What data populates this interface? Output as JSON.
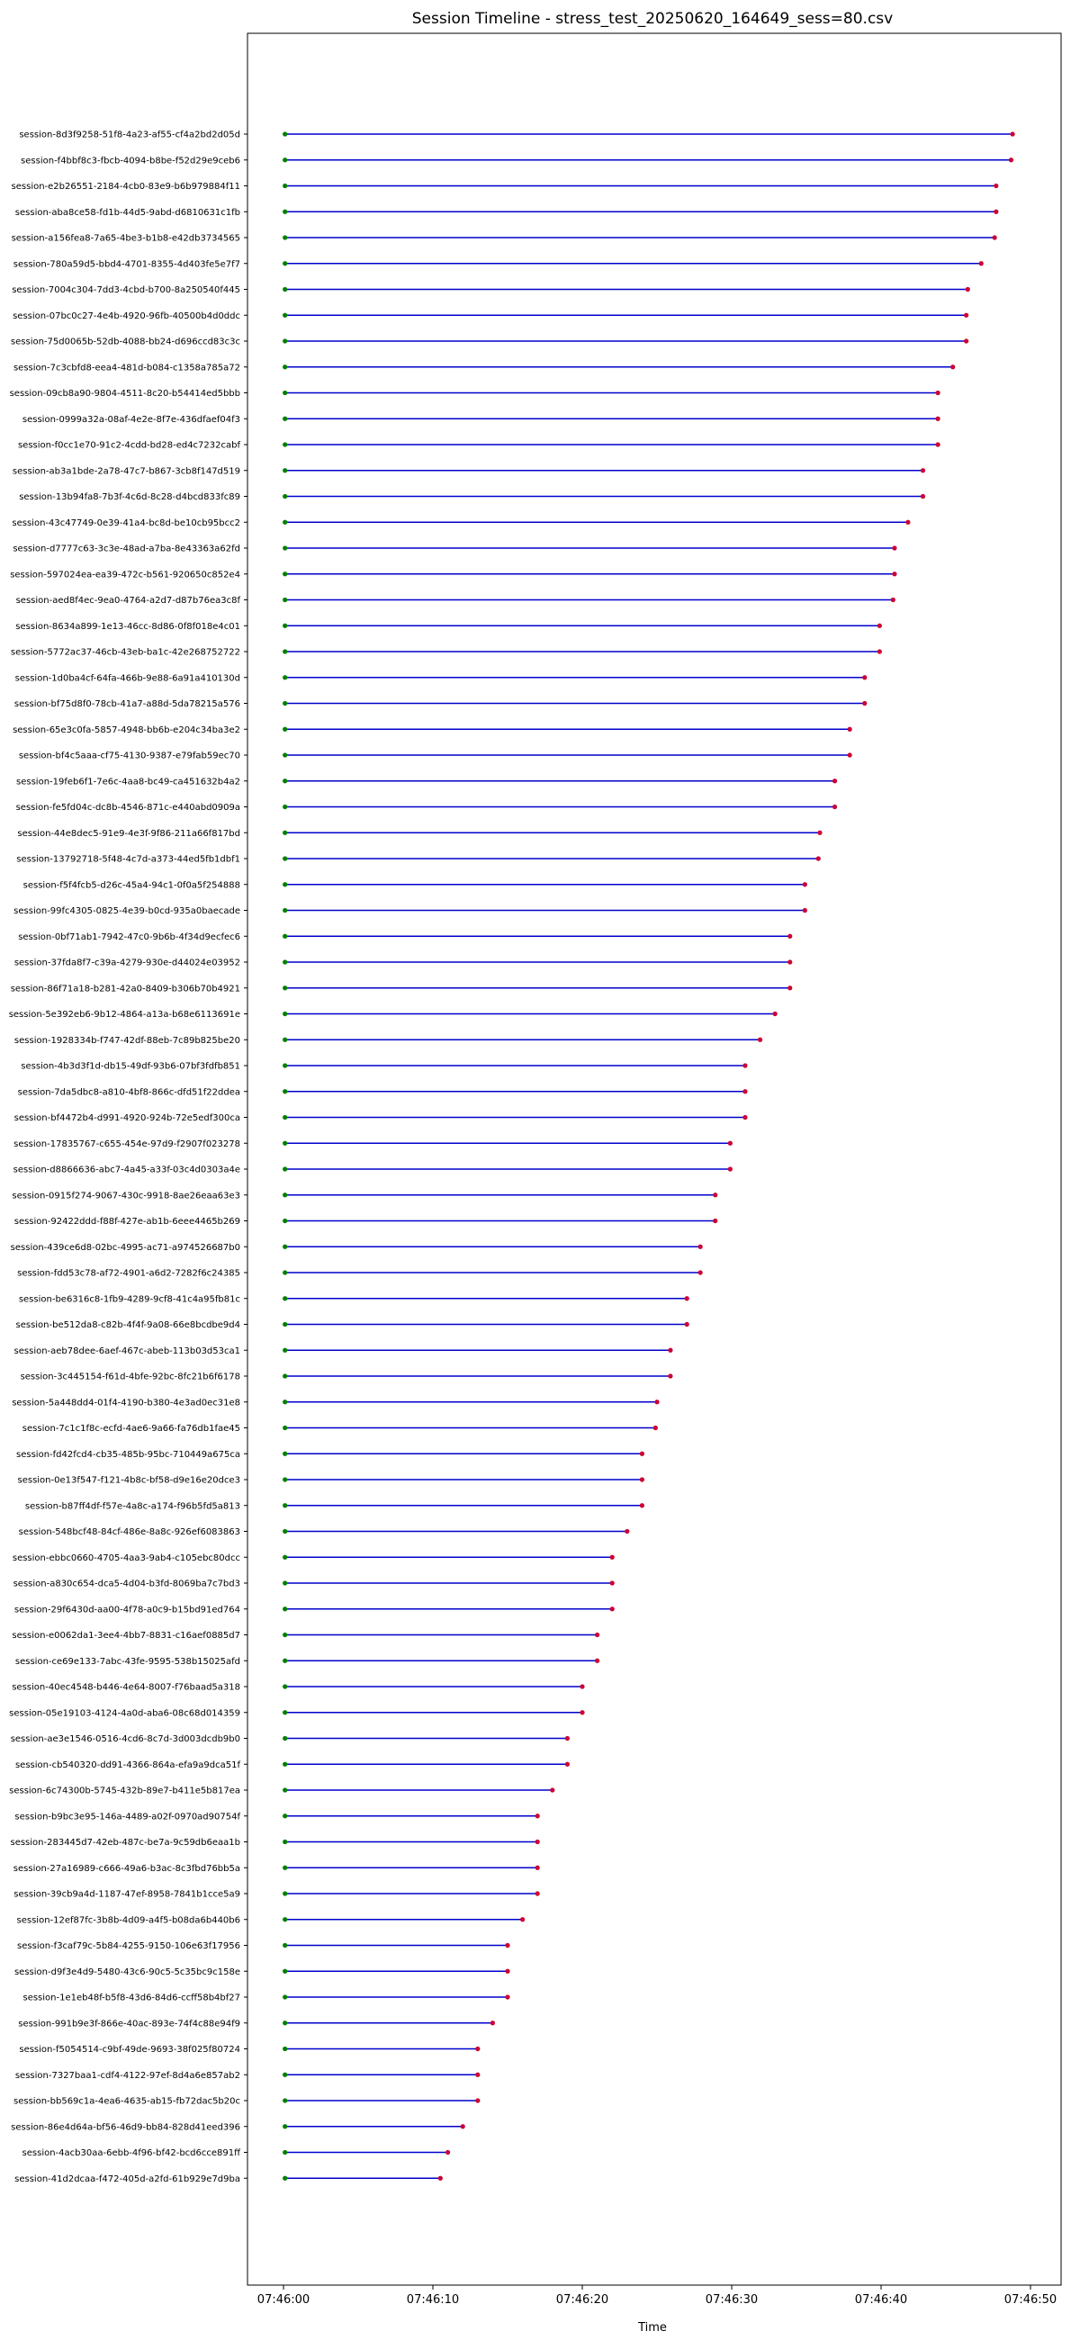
{
  "chart_data": {
    "type": "timeline",
    "title": "Session Timeline - stress_test_20250620_164649_sess=80.csv",
    "xlabel": "Time",
    "ylabel": "",
    "grid": false,
    "legend": "none",
    "x_tick_labels": [
      "07:46:00",
      "07:46:10",
      "07:46:20",
      "07:46:30",
      "07:46:40",
      "07:46:50"
    ],
    "x_tick_seconds": [
      0,
      10,
      20,
      30,
      40,
      50
    ],
    "x_range_seconds": [
      -1.0,
      50.0
    ],
    "colors": {
      "line": "#0000cc",
      "start_marker": "#008000",
      "end_marker": "#cc0033"
    },
    "start_seconds": 0.1,
    "sessions": [
      {
        "name": "session-8d3f9258-51f8-4a23-af55-cf4a2bd2d05d",
        "end": 48.8
      },
      {
        "name": "session-f4bbf8c3-fbcb-4094-b8be-f52d29e9ceb6",
        "end": 48.7
      },
      {
        "name": "session-e2b26551-2184-4cb0-83e9-b6b979884f11",
        "end": 47.7
      },
      {
        "name": "session-aba8ce58-fd1b-44d5-9abd-d6810631c1fb",
        "end": 47.7
      },
      {
        "name": "session-a156fea8-7a65-4be3-b1b8-e42db3734565",
        "end": 47.6
      },
      {
        "name": "session-780a59d5-bbd4-4701-8355-4d403fe5e7f7",
        "end": 46.7
      },
      {
        "name": "session-7004c304-7dd3-4cbd-b700-8a250540f445",
        "end": 45.8
      },
      {
        "name": "session-07bc0c27-4e4b-4920-96fb-40500b4d0ddc",
        "end": 45.7
      },
      {
        "name": "session-75d0065b-52db-4088-bb24-d696ccd83c3c",
        "end": 45.7
      },
      {
        "name": "session-7c3cbfd8-eea4-481d-b084-c1358a785a72",
        "end": 44.8
      },
      {
        "name": "session-09cb8a90-9804-4511-8c20-b54414ed5bbb",
        "end": 43.8
      },
      {
        "name": "session-0999a32a-08af-4e2e-8f7e-436dfaef04f3",
        "end": 43.8
      },
      {
        "name": "session-f0cc1e70-91c2-4cdd-bd28-ed4c7232cabf",
        "end": 43.8
      },
      {
        "name": "session-ab3a1bde-2a78-47c7-b867-3cb8f147d519",
        "end": 42.8
      },
      {
        "name": "session-13b94fa8-7b3f-4c6d-8c28-d4bcd833fc89",
        "end": 42.8
      },
      {
        "name": "session-43c47749-0e39-41a4-bc8d-be10cb95bcc2",
        "end": 41.8
      },
      {
        "name": "session-d7777c63-3c3e-48ad-a7ba-8e43363a62fd",
        "end": 40.9
      },
      {
        "name": "session-597024ea-ea39-472c-b561-920650c852e4",
        "end": 40.9
      },
      {
        "name": "session-aed8f4ec-9ea0-4764-a2d7-d87b76ea3c8f",
        "end": 40.8
      },
      {
        "name": "session-8634a899-1e13-46cc-8d86-0f8f018e4c01",
        "end": 39.9
      },
      {
        "name": "session-5772ac37-46cb-43eb-ba1c-42e268752722",
        "end": 39.9
      },
      {
        "name": "session-1d0ba4cf-64fa-466b-9e88-6a91a410130d",
        "end": 38.9
      },
      {
        "name": "session-bf75d8f0-78cb-41a7-a88d-5da78215a576",
        "end": 38.9
      },
      {
        "name": "session-65e3c0fa-5857-4948-bb6b-e204c34ba3e2",
        "end": 37.9
      },
      {
        "name": "session-bf4c5aaa-cf75-4130-9387-e79fab59ec70",
        "end": 37.9
      },
      {
        "name": "session-19feb6f1-7e6c-4aa8-bc49-ca451632b4a2",
        "end": 36.9
      },
      {
        "name": "session-fe5fd04c-dc8b-4546-871c-e440abd0909a",
        "end": 36.9
      },
      {
        "name": "session-44e8dec5-91e9-4e3f-9f86-211a66f817bd",
        "end": 35.9
      },
      {
        "name": "session-13792718-5f48-4c7d-a373-44ed5fb1dbf1",
        "end": 35.8
      },
      {
        "name": "session-f5f4fcb5-d26c-45a4-94c1-0f0a5f254888",
        "end": 34.9
      },
      {
        "name": "session-99fc4305-0825-4e39-b0cd-935a0baecade",
        "end": 34.9
      },
      {
        "name": "session-0bf71ab1-7942-47c0-9b6b-4f34d9ecfec6",
        "end": 33.9
      },
      {
        "name": "session-37fda8f7-c39a-4279-930e-d44024e03952",
        "end": 33.9
      },
      {
        "name": "session-86f71a18-b281-42a0-8409-b306b70b4921",
        "end": 33.9
      },
      {
        "name": "session-5e392eb6-9b12-4864-a13a-b68e6113691e",
        "end": 32.9
      },
      {
        "name": "session-1928334b-f747-42df-88eb-7c89b825be20",
        "end": 31.9
      },
      {
        "name": "session-4b3d3f1d-db15-49df-93b6-07bf3fdfb851",
        "end": 30.9
      },
      {
        "name": "session-7da5dbc8-a810-4bf8-866c-dfd51f22ddea",
        "end": 30.9
      },
      {
        "name": "session-bf4472b4-d991-4920-924b-72e5edf300ca",
        "end": 30.9
      },
      {
        "name": "session-17835767-c655-454e-97d9-f2907f023278",
        "end": 29.9
      },
      {
        "name": "session-d8866636-abc7-4a45-a33f-03c4d0303a4e",
        "end": 29.9
      },
      {
        "name": "session-0915f274-9067-430c-9918-8ae26eaa63e3",
        "end": 28.9
      },
      {
        "name": "session-92422ddd-f88f-427e-ab1b-6eee4465b269",
        "end": 28.9
      },
      {
        "name": "session-439ce6d8-02bc-4995-ac71-a974526687b0",
        "end": 27.9
      },
      {
        "name": "session-fdd53c78-af72-4901-a6d2-7282f6c24385",
        "end": 27.9
      },
      {
        "name": "session-be6316c8-1fb9-4289-9cf8-41c4a95fb81c",
        "end": 27.0
      },
      {
        "name": "session-be512da8-c82b-4f4f-9a08-66e8bcdbe9d4",
        "end": 27.0
      },
      {
        "name": "session-aeb78dee-6aef-467c-abeb-113b03d53ca1",
        "end": 25.9
      },
      {
        "name": "session-3c445154-f61d-4bfe-92bc-8fc21b6f6178",
        "end": 25.9
      },
      {
        "name": "session-5a448dd4-01f4-4190-b380-4e3ad0ec31e8",
        "end": 25.0
      },
      {
        "name": "session-7c1c1f8c-ecfd-4ae6-9a66-fa76db1fae45",
        "end": 24.9
      },
      {
        "name": "session-fd42fcd4-cb35-485b-95bc-710449a675ca",
        "end": 24.0
      },
      {
        "name": "session-0e13f547-f121-4b8c-bf58-d9e16e20dce3",
        "end": 24.0
      },
      {
        "name": "session-b87ff4df-f57e-4a8c-a174-f96b5fd5a813",
        "end": 24.0
      },
      {
        "name": "session-548bcf48-84cf-486e-8a8c-926ef6083863",
        "end": 23.0
      },
      {
        "name": "session-ebbc0660-4705-4aa3-9ab4-c105ebc80dcc",
        "end": 22.0
      },
      {
        "name": "session-a830c654-dca5-4d04-b3fd-8069ba7c7bd3",
        "end": 22.0
      },
      {
        "name": "session-29f6430d-aa00-4f78-a0c9-b15bd91ed764",
        "end": 22.0
      },
      {
        "name": "session-e0062da1-3ee4-4bb7-8831-c16aef0885d7",
        "end": 21.0
      },
      {
        "name": "session-ce69e133-7abc-43fe-9595-538b15025afd",
        "end": 21.0
      },
      {
        "name": "session-40ec4548-b446-4e64-8007-f76baad5a318",
        "end": 20.0
      },
      {
        "name": "session-05e19103-4124-4a0d-aba6-08c68d014359",
        "end": 20.0
      },
      {
        "name": "session-ae3e1546-0516-4cd6-8c7d-3d003dcdb9b0",
        "end": 19.0
      },
      {
        "name": "session-cb540320-dd91-4366-864a-efa9a9dca51f",
        "end": 19.0
      },
      {
        "name": "session-6c74300b-5745-432b-89e7-b411e5b817ea",
        "end": 18.0
      },
      {
        "name": "session-b9bc3e95-146a-4489-a02f-0970ad90754f",
        "end": 17.0
      },
      {
        "name": "session-283445d7-42eb-487c-be7a-9c59db6eaa1b",
        "end": 17.0
      },
      {
        "name": "session-27a16989-c666-49a6-b3ac-8c3fbd76bb5a",
        "end": 17.0
      },
      {
        "name": "session-39cb9a4d-1187-47ef-8958-7841b1cce5a9",
        "end": 17.0
      },
      {
        "name": "session-12ef87fc-3b8b-4d09-a4f5-b08da6b440b6",
        "end": 16.0
      },
      {
        "name": "session-f3caf79c-5b84-4255-9150-106e63f17956",
        "end": 15.0
      },
      {
        "name": "session-d9f3e4d9-5480-43c6-90c5-5c35bc9c158e",
        "end": 15.0
      },
      {
        "name": "session-1e1eb48f-b5f8-43d6-84d6-ccff58b4bf27",
        "end": 15.0
      },
      {
        "name": "session-991b9e3f-866e-40ac-893e-74f4c88e94f9",
        "end": 14.0
      },
      {
        "name": "session-f5054514-c9bf-49de-9693-38f025f80724",
        "end": 13.0
      },
      {
        "name": "session-7327baa1-cdf4-4122-97ef-8d4a6e857ab2",
        "end": 13.0
      },
      {
        "name": "session-bb569c1a-4ea6-4635-ab15-fb72dac5b20c",
        "end": 13.0
      },
      {
        "name": "session-86e4d64a-bf56-46d9-bb84-828d41eed396",
        "end": 12.0
      },
      {
        "name": "session-4acb30aa-6ebb-4f96-bf42-bcd6cce891ff",
        "end": 11.0
      },
      {
        "name": "session-41d2dcaa-f472-405d-a2fd-61b929e7d9ba",
        "end": 10.5
      }
    ]
  }
}
